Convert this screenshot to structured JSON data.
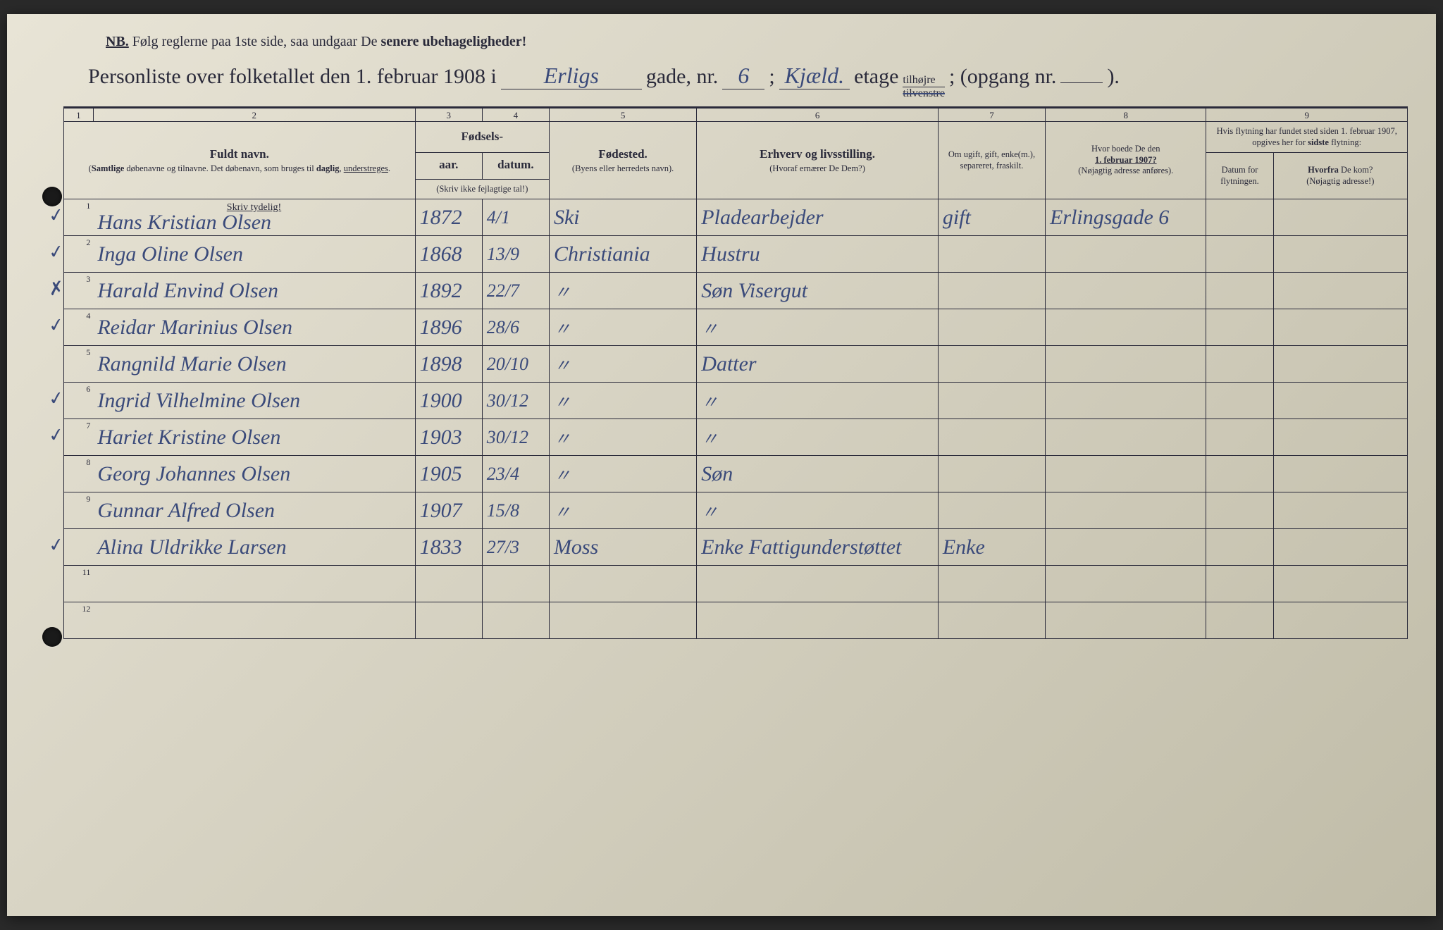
{
  "nb": {
    "prefix": "NB.",
    "text_a": "Følg reglerne paa 1ste side, saa undgaar De ",
    "text_b": "senere ubehageligheder!"
  },
  "title": {
    "a": "Personliste over folketallet den 1. februar 1908 i",
    "street": "Erligs",
    "b": "gade, nr.",
    "nr": "6",
    "c": ";",
    "floor": "Kjæld.",
    "d": "etage",
    "frac_top": "tilhøjre",
    "frac_bot": "tilvenstre",
    "e": "; (opgang nr.",
    "opgang": "",
    "f": ")."
  },
  "colnums": [
    "1",
    "2",
    "3",
    "4",
    "5",
    "6",
    "7",
    "8",
    "9"
  ],
  "headers": {
    "name_main": "Fuldt navn.",
    "name_sub1": "(Samtlige døbenavne og tilnavne. Det døbenavn, som bruges til daglig, understreges.",
    "fodsels": "Fødsels-",
    "aar": "aar.",
    "datum": "datum.",
    "fodsels_sub": "(Skriv ikke fejlagtige tal!)",
    "fodested_main": "Fødested.",
    "fodested_sub": "(Byens eller herredets navn).",
    "erhverv_main": "Erhverv og livsstilling.",
    "erhverv_sub": "(Hvoraf ernærer De Dem?)",
    "ugift": "Om ugift, gift, enke(m.), separeret, fraskilt.",
    "boede_a": "Hvor boede De den",
    "boede_b": "1. februar 1907?",
    "boede_sub": "(Nøjagtig adresse anføres).",
    "flyt_top": "Hvis flytning har fundet sted siden 1. februar 1907, opgives her for sidste flytning:",
    "flyt_datum": "Datum for flytningen.",
    "flyt_hvorfra_a": "Hvorfra",
    "flyt_hvorfra_b": "De kom?",
    "flyt_hvorfra_sub": "(Nøjagtig adresse!)",
    "skriv_tydelig": "Skriv tydelig!"
  },
  "rows": [
    {
      "n": "1",
      "chk": "✓",
      "name": "Hans Kristian Olsen",
      "aar": "1872",
      "datum": "4/1",
      "sted": "Ski",
      "erhverv": "Pladearbejder",
      "ugift": "gift",
      "boede": "Erlingsgade 6"
    },
    {
      "n": "2",
      "chk": "✓",
      "name": "Inga Oline Olsen",
      "aar": "1868",
      "datum": "13/9",
      "sted": "Christiania",
      "erhverv": "Hustru",
      "ugift": "",
      "boede": ""
    },
    {
      "n": "3",
      "chk": "✗",
      "name": "Harald Envind Olsen",
      "aar": "1892",
      "datum": "22/7",
      "sted": "〃",
      "erhverv": "Søn Visergut",
      "ugift": "",
      "boede": ""
    },
    {
      "n": "4",
      "chk": "✓",
      "name": "Reidar Marinius Olsen",
      "aar": "1896",
      "datum": "28/6",
      "sted": "〃",
      "erhverv": "〃",
      "ugift": "",
      "boede": ""
    },
    {
      "n": "5",
      "chk": "",
      "name": "Rangnild Marie Olsen",
      "aar": "1898",
      "datum": "20/10",
      "sted": "〃",
      "erhverv": "Datter",
      "ugift": "",
      "boede": ""
    },
    {
      "n": "6",
      "chk": "✓",
      "name": "Ingrid Vilhelmine Olsen",
      "aar": "1900",
      "datum": "30/12",
      "sted": "〃",
      "erhverv": "〃",
      "ugift": "",
      "boede": ""
    },
    {
      "n": "7",
      "chk": "✓",
      "name": "Hariet Kristine Olsen",
      "aar": "1903",
      "datum": "30/12",
      "sted": "〃",
      "erhverv": "〃",
      "ugift": "",
      "boede": ""
    },
    {
      "n": "8",
      "chk": "",
      "name": "Georg Johannes Olsen",
      "aar": "1905",
      "datum": "23/4",
      "sted": "〃",
      "erhverv": "Søn",
      "ugift": "",
      "boede": ""
    },
    {
      "n": "9",
      "chk": "",
      "name": "Gunnar Alfred Olsen",
      "aar": "1907",
      "datum": "15/8",
      "sted": "〃",
      "erhverv": "〃",
      "ugift": "",
      "boede": ""
    },
    {
      "n": "",
      "chk": "✓",
      "name": "Alina Uldrikke Larsen",
      "aar": "1833",
      "datum": "27/3",
      "sted": "Moss",
      "erhverv": "Enke Fattigunderstøttet",
      "ugift": "Enke",
      "boede": ""
    },
    {
      "n": "11",
      "chk": "",
      "name": "",
      "aar": "",
      "datum": "",
      "sted": "",
      "erhverv": "",
      "ugift": "",
      "boede": ""
    },
    {
      "n": "12",
      "chk": "",
      "name": "",
      "aar": "",
      "datum": "",
      "sted": "",
      "erhverv": "",
      "ugift": "",
      "boede": ""
    }
  ],
  "colors": {
    "paper": "#e0dcc8",
    "ink": "#2a2a3a",
    "handwriting": "#3a4a7a"
  },
  "col_widths_pct": [
    2.2,
    24,
    5,
    5,
    11,
    18,
    8,
    12,
    5,
    10
  ]
}
